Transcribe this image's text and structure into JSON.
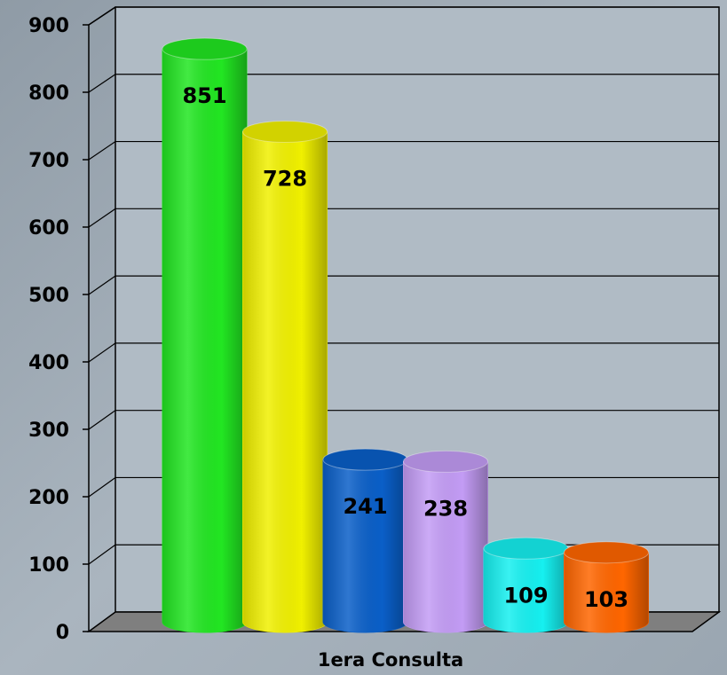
{
  "chart_data": {
    "type": "bar",
    "xlabel": "1era Consulta",
    "categories": [
      "1era Consulta"
    ],
    "series": [
      {
        "color": "#22e622",
        "values": [
          851
        ]
      },
      {
        "color": "#f0f000",
        "values": [
          728
        ]
      },
      {
        "color": "#0a5fc8",
        "values": [
          241
        ]
      },
      {
        "color": "#c39cf5",
        "values": [
          238
        ]
      },
      {
        "color": "#16f0f0",
        "values": [
          109
        ]
      },
      {
        "color": "#ff6600",
        "values": [
          103
        ]
      }
    ],
    "ylim": [
      0,
      900
    ],
    "yticks": [
      0,
      100,
      200,
      300,
      400,
      500,
      600,
      700,
      800,
      900
    ],
    "grid": true
  }
}
